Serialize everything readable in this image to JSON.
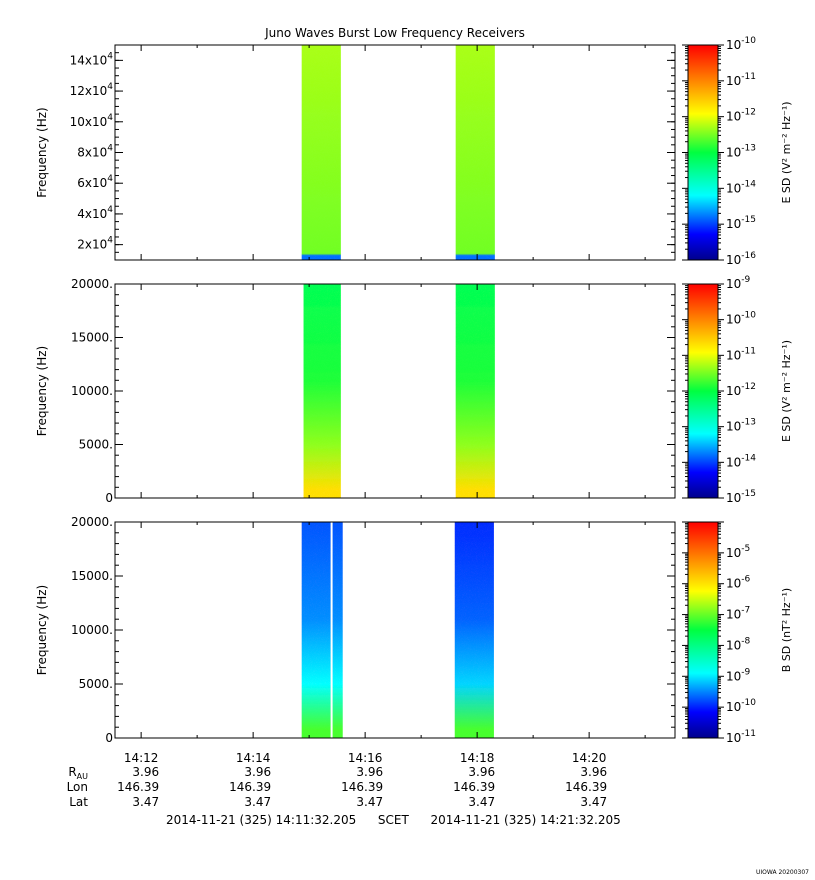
{
  "title": "Juno Waves Burst Low Frequency Receivers",
  "stamp": "UIOWA 20200307",
  "chart_data": [
    {
      "type": "heatmap",
      "ylabel": "Frequency (Hz)",
      "ylim": [
        10000,
        150000
      ],
      "yticks": [
        {
          "value": 20000,
          "mant": "2x10",
          "exp": "4"
        },
        {
          "value": 40000,
          "mant": "4x10",
          "exp": "4"
        },
        {
          "value": 60000,
          "mant": "6x10",
          "exp": "4"
        },
        {
          "value": 80000,
          "mant": "8x10",
          "exp": "4"
        },
        {
          "value": 100000,
          "mant": "10x10",
          "exp": "4"
        },
        {
          "value": 120000,
          "mant": "12x10",
          "exp": "4"
        },
        {
          "value": 140000,
          "mant": "14x10",
          "exp": "4"
        }
      ],
      "colorbar": {
        "label": "E SD (V² m⁻² Hz⁻¹)",
        "log_range": [
          -16,
          -10
        ],
        "ticks": [
          "-16",
          "-15",
          "-14",
          "-13",
          "-12",
          "-11",
          "-10"
        ]
      },
      "bursts": [
        {
          "start": "14:14:52",
          "end": "14:15:34",
          "level": 0.62,
          "floor_level": 0.2
        },
        {
          "start": "14:17:37",
          "end": "14:18:19",
          "level": 0.62,
          "floor_level": 0.2
        }
      ]
    },
    {
      "type": "heatmap",
      "ylabel": "Frequency (Hz)",
      "ylim": [
        0,
        20000
      ],
      "yticks": [
        {
          "value": 0,
          "label": "0"
        },
        {
          "value": 5000,
          "label": "5000."
        },
        {
          "value": 10000,
          "label": "10000."
        },
        {
          "value": 15000,
          "label": "15000."
        },
        {
          "value": 20000,
          "label": "20000."
        }
      ],
      "colorbar": {
        "label": "E SD (V² m⁻² Hz⁻¹)",
        "log_range": [
          -15,
          -9
        ],
        "ticks": [
          "-15",
          "-14",
          "-13",
          "-12",
          "-11",
          "-10",
          "-9"
        ]
      },
      "bursts": [
        {
          "start": "14:14:54",
          "end": "14:15:34",
          "level": 0.48,
          "low_level": 0.72
        },
        {
          "start": "14:17:37",
          "end": "14:18:19",
          "level": 0.48,
          "low_level": 0.72
        }
      ]
    },
    {
      "type": "heatmap",
      "ylabel": "Frequency (Hz)",
      "ylim": [
        0,
        20000
      ],
      "yticks": [
        {
          "value": 0,
          "label": "0"
        },
        {
          "value": 5000,
          "label": "5000."
        },
        {
          "value": 10000,
          "label": "10000."
        },
        {
          "value": 15000,
          "label": "15000."
        },
        {
          "value": 20000,
          "label": "20000."
        }
      ],
      "colorbar": {
        "label": "B SD (nT² Hz⁻¹)",
        "log_range": [
          -11,
          -4
        ],
        "ticks": [
          "-11",
          "-10",
          "-9",
          "-8",
          "-7",
          "-6",
          "-5"
        ]
      },
      "bursts": [
        {
          "start": "14:14:52",
          "end": "14:15:36",
          "level": 0.18,
          "low_level": 0.55,
          "gap": "14:15:23"
        },
        {
          "start": "14:17:36",
          "end": "14:18:18",
          "level": 0.15,
          "low_level": 0.55
        }
      ]
    }
  ],
  "time_axis": {
    "start": "14:11:32",
    "end": "14:21:32",
    "labels": [
      "14:12",
      "14:14",
      "14:16",
      "14:18",
      "14:20"
    ]
  },
  "ephemeris": {
    "rows": [
      {
        "label": "R",
        "sub": "AU",
        "values": [
          "3.96",
          "3.96",
          "3.96",
          "3.96",
          "3.96"
        ]
      },
      {
        "label": "Lon",
        "values": [
          "146.39",
          "146.39",
          "146.39",
          "146.39",
          "146.39"
        ]
      },
      {
        "label": "Lat",
        "values": [
          "3.47",
          "3.47",
          "3.47",
          "3.47",
          "3.47"
        ]
      }
    ]
  },
  "range_line": {
    "start": "2014-11-21 (325) 14:11:32.205",
    "scet": "SCET",
    "end": "2014-11-21 (325) 14:21:32.205"
  }
}
